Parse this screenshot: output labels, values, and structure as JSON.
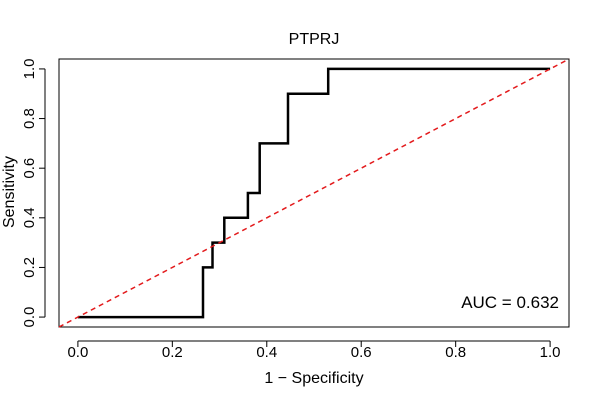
{
  "chart_data": {
    "type": "line",
    "title": "PTPRJ",
    "xlabel": "1 − Specificity",
    "ylabel": "Sensitivity",
    "xlim": [
      -0.04,
      1.04
    ],
    "ylim": [
      -0.04,
      1.04
    ],
    "x_ticks": [
      0.0,
      0.2,
      0.4,
      0.6,
      0.8,
      1.0
    ],
    "x_tick_labels": [
      "0.0",
      "0.2",
      "0.4",
      "0.6",
      "0.8",
      "1.0"
    ],
    "y_ticks": [
      0.0,
      0.2,
      0.4,
      0.6,
      0.8,
      1.0
    ],
    "y_tick_labels": [
      "0.0",
      "0.2",
      "0.4",
      "0.6",
      "0.8",
      "1.0"
    ],
    "grid": false,
    "annotation": "AUC = 0.632",
    "annotation_position": "bottom-right",
    "series": [
      {
        "name": "ROC curve",
        "style": "step",
        "color": "#000000",
        "x": [
          0.0,
          0.265,
          0.265,
          0.285,
          0.285,
          0.31,
          0.31,
          0.36,
          0.36,
          0.385,
          0.385,
          0.445,
          0.445,
          0.53,
          0.53,
          1.0
        ],
        "y": [
          0.0,
          0.0,
          0.2,
          0.2,
          0.3,
          0.3,
          0.4,
          0.4,
          0.5,
          0.5,
          0.7,
          0.7,
          0.9,
          0.9,
          1.0,
          1.0
        ]
      },
      {
        "name": "Chance diagonal",
        "style": "dashed",
        "color": "#e31a1c",
        "x": [
          -0.04,
          1.04
        ],
        "y": [
          -0.04,
          1.04
        ]
      }
    ]
  }
}
